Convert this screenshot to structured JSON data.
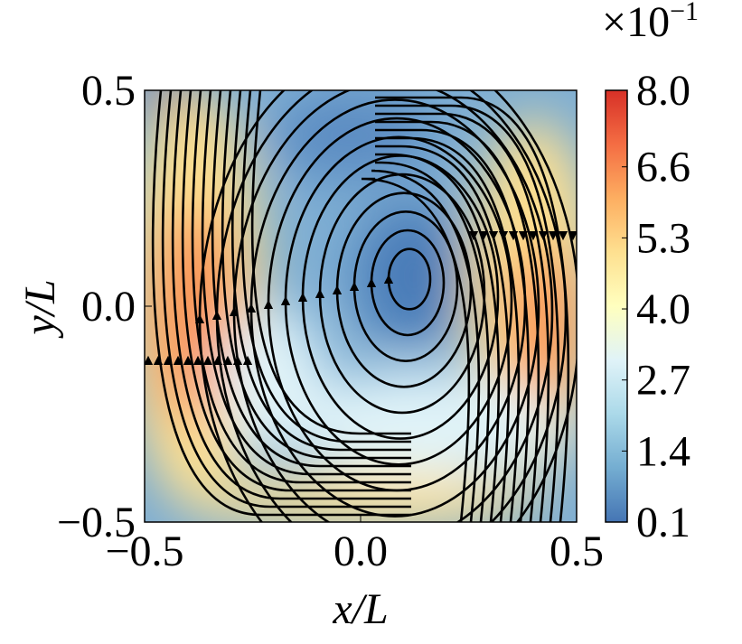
{
  "chart_data": {
    "type": "streamline",
    "xlabel": "x/L",
    "ylabel": "y/L",
    "xlim": [
      -0.5,
      0.5
    ],
    "ylim": [
      -0.5,
      0.5
    ],
    "xticks": [
      {
        "value": -0.5,
        "label": "−0.5"
      },
      {
        "value": 0,
        "label": "0.0"
      },
      0.5
    ],
    "yticks": [
      {
        "value": -0.5,
        "label": "−0.5"
      },
      {
        "value": 0,
        "label": "0.0"
      },
      0.5
    ],
    "colorbar_label": "×10",
    "colorbar_label_exponent": "−1",
    "clim": [
      0.1,
      8.0
    ],
    "cticks": [
      0.1,
      1.4,
      2.7,
      {
        "value": 4.0,
        "label": "4.0"
      },
      5.3,
      6.6,
      {
        "value": 8.0,
        "label": "8.0"
      }
    ],
    "colormap": [
      "#4575b4",
      "#74add1",
      "#abd9e9",
      "#e0f3f8",
      "#ffffbf",
      "#fee090",
      "#fdae61",
      "#f46d43",
      "#d73027"
    ]
  }
}
